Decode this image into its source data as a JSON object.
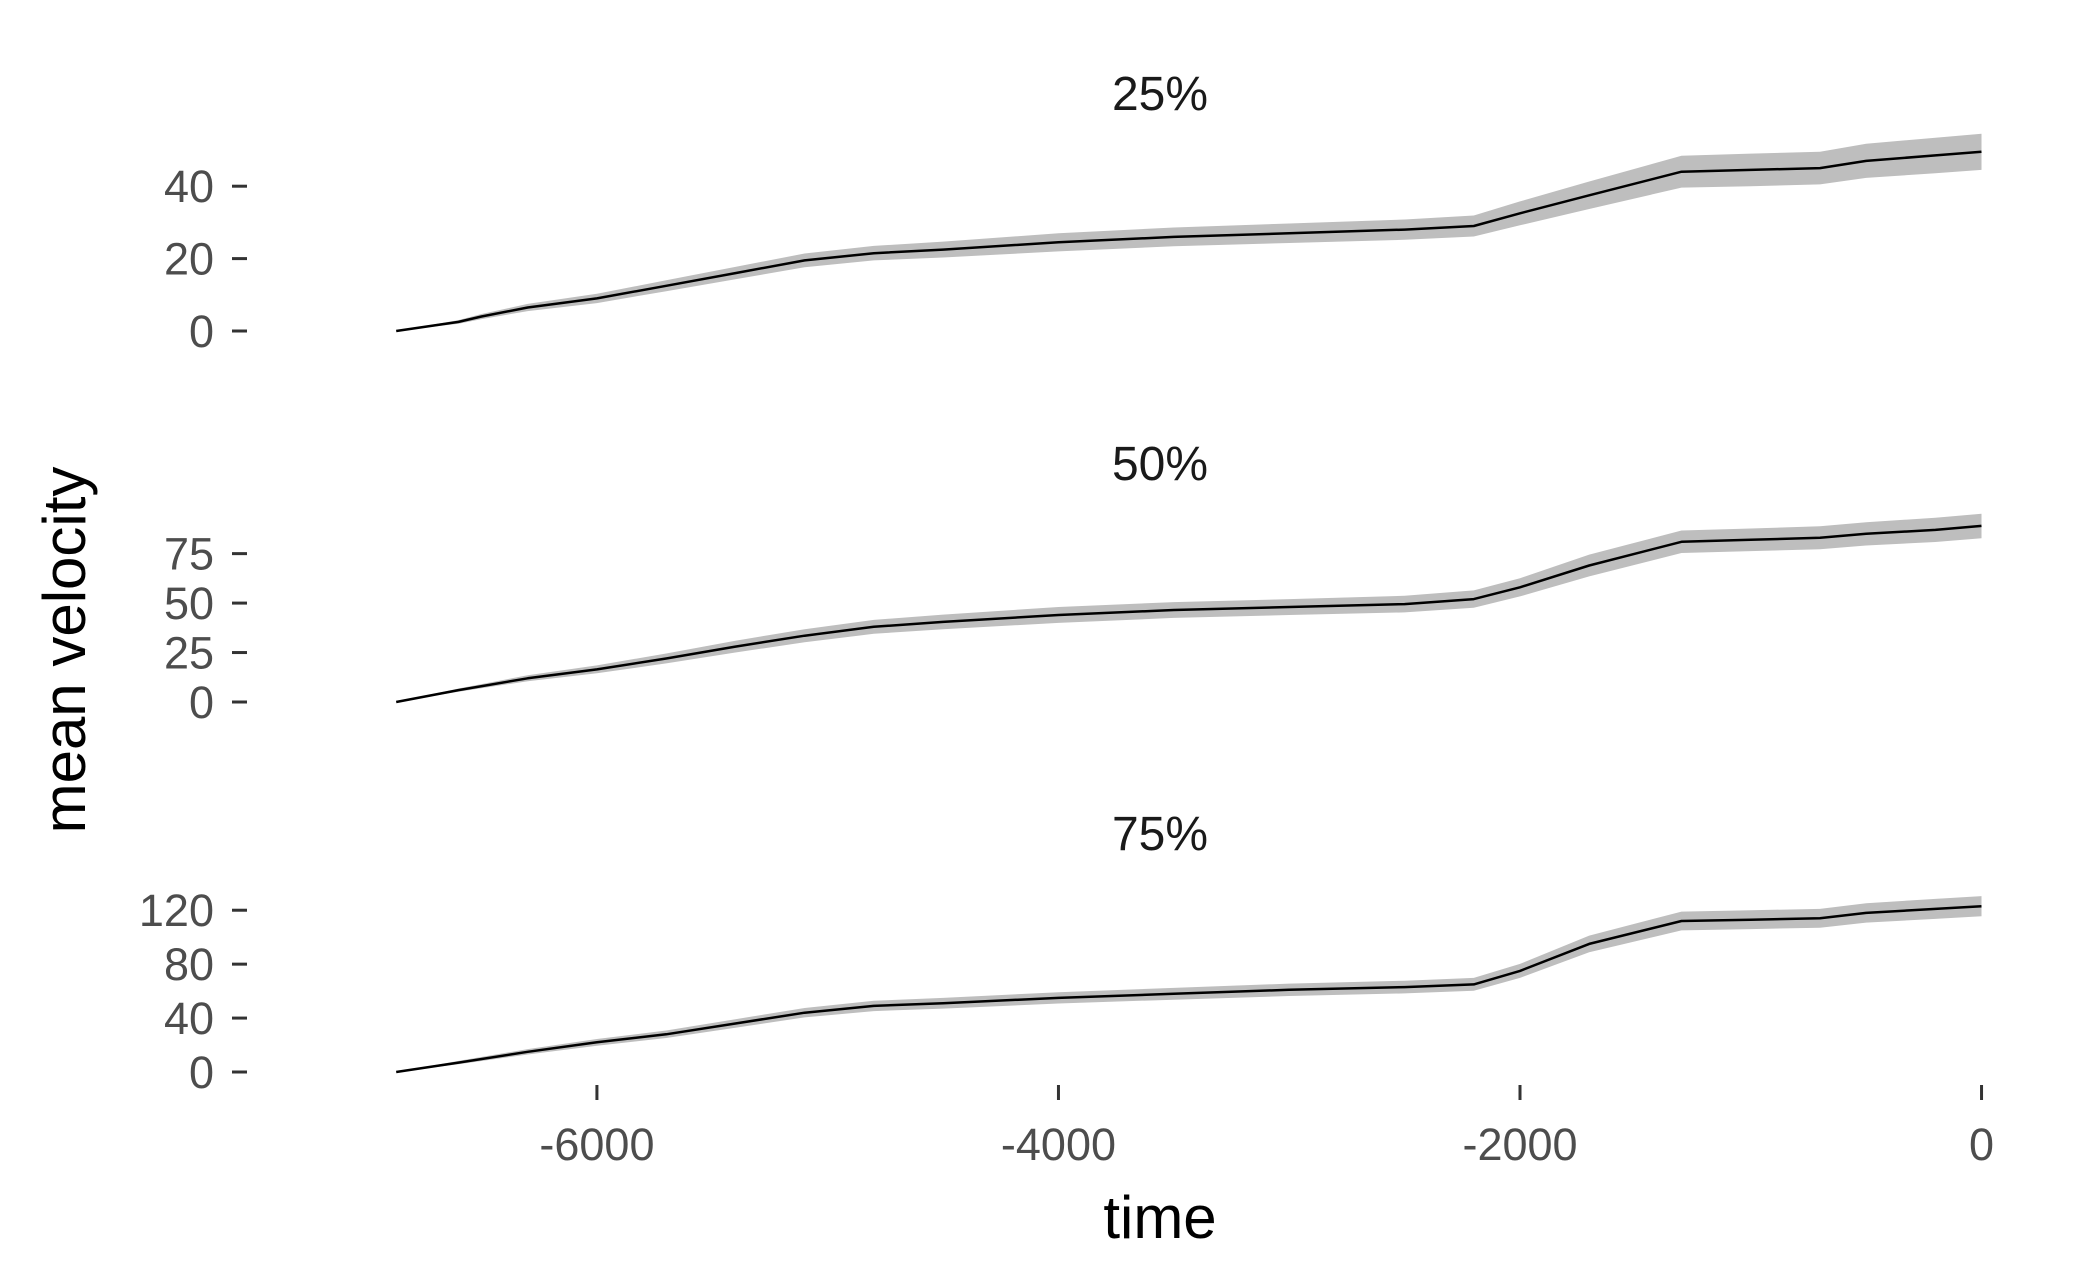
{
  "chart_data": {
    "type": "line",
    "xlabel": "time",
    "ylabel": "mean velocity",
    "x_ticks": [
      -6000,
      -4000,
      -2000,
      0
    ],
    "x_tick_labels": [
      "-6000",
      "-4000",
      "-2000",
      "0"
    ],
    "xlim": [
      -7200,
      80
    ],
    "grid": false,
    "line_color": "#000000",
    "ribbon_color": "#bebebe",
    "panels": [
      {
        "title": "25%",
        "ylim": [
          0,
          50
        ],
        "y_ticks": [
          0,
          20,
          40
        ],
        "y_tick_labels": [
          "0",
          "20",
          "40"
        ],
        "series": {
          "x": [
            -6870,
            -6600,
            -6500,
            -6300,
            -6000,
            -5700,
            -5400,
            -5100,
            -4800,
            -4500,
            -4000,
            -3500,
            -3000,
            -2500,
            -2200,
            -2000,
            -1700,
            -1300,
            -1000,
            -700,
            -500,
            -200,
            0
          ],
          "y": [
            0,
            2.5,
            4,
            6.5,
            9,
            12.5,
            16,
            19.5,
            21.5,
            22.5,
            24.5,
            26,
            27,
            28,
            29,
            32.5,
            37.5,
            44,
            44.5,
            45,
            47,
            48.5,
            49.5
          ],
          "lower": [
            0,
            2,
            3.3,
            5.5,
            7.7,
            11,
            14.3,
            17.6,
            19.5,
            20.3,
            22,
            23.4,
            24.3,
            25.2,
            26.1,
            29.2,
            33.7,
            39.6,
            40,
            40.5,
            42.3,
            43.6,
            44.5
          ],
          "upper": [
            0,
            3,
            4.7,
            7.5,
            10.3,
            14,
            17.7,
            21.4,
            23.5,
            24.7,
            27,
            28.6,
            29.7,
            30.8,
            31.9,
            35.8,
            41.3,
            48.4,
            49,
            49.5,
            51.7,
            53.4,
            54.5
          ]
        }
      },
      {
        "title": "50%",
        "ylim": [
          0,
          92
        ],
        "y_ticks": [
          0,
          25,
          50,
          75
        ],
        "y_tick_labels": [
          "0",
          "25",
          "50",
          "75"
        ],
        "series": {
          "x": [
            -6870,
            -6600,
            -6300,
            -6000,
            -5700,
            -5400,
            -5100,
            -4800,
            -4500,
            -4000,
            -3500,
            -3000,
            -2500,
            -2200,
            -2000,
            -1700,
            -1300,
            -1000,
            -700,
            -500,
            -200,
            0
          ],
          "y": [
            0,
            6,
            12,
            16.5,
            22,
            28,
            33.5,
            38,
            40.5,
            44,
            46.5,
            48,
            49.5,
            52,
            58,
            69,
            81,
            82,
            83,
            85,
            87,
            89
          ],
          "lower": [
            0,
            5.2,
            10.5,
            14.5,
            19.5,
            25,
            30.2,
            34.5,
            36.8,
            40,
            42.5,
            44,
            45.3,
            47.6,
            53.4,
            63.5,
            75.3,
            76.3,
            77.2,
            79.1,
            80.9,
            82.8
          ],
          "upper": [
            0,
            6.8,
            13.5,
            18.5,
            24.5,
            31,
            36.8,
            41.5,
            44.2,
            48,
            50.5,
            52,
            53.7,
            56.4,
            62.6,
            74.5,
            86.7,
            87.7,
            88.8,
            90.9,
            93.1,
            95.2
          ]
        }
      },
      {
        "title": "75%",
        "ylim": [
          0,
          135
        ],
        "y_ticks": [
          0,
          40,
          80,
          120
        ],
        "y_tick_labels": [
          "0",
          "40",
          "80",
          "120"
        ],
        "series": {
          "x": [
            -6870,
            -6600,
            -6300,
            -6000,
            -5700,
            -5400,
            -5100,
            -4800,
            -4500,
            -4000,
            -3500,
            -3000,
            -2500,
            -2200,
            -2000,
            -1700,
            -1300,
            -1000,
            -700,
            -500,
            -200,
            0
          ],
          "y": [
            0,
            7,
            15,
            22,
            28,
            36,
            44,
            49,
            51,
            55,
            58,
            61,
            63,
            65,
            75,
            95,
            112,
            113,
            114,
            118,
            121,
            123
          ],
          "lower": [
            0,
            5.8,
            13,
            19.5,
            25.2,
            32.8,
            40.5,
            45.2,
            47,
            50.8,
            53.6,
            56.4,
            58.3,
            60.2,
            69.8,
            88.8,
            105,
            106,
            107,
            110.8,
            113.6,
            115.5
          ],
          "upper": [
            0,
            8.2,
            17,
            24.5,
            30.8,
            39.2,
            47.5,
            52.8,
            55,
            59.2,
            62.4,
            65.6,
            67.7,
            69.8,
            80.2,
            101.2,
            119,
            120,
            121,
            125.2,
            128.4,
            130.5
          ]
        }
      }
    ]
  }
}
